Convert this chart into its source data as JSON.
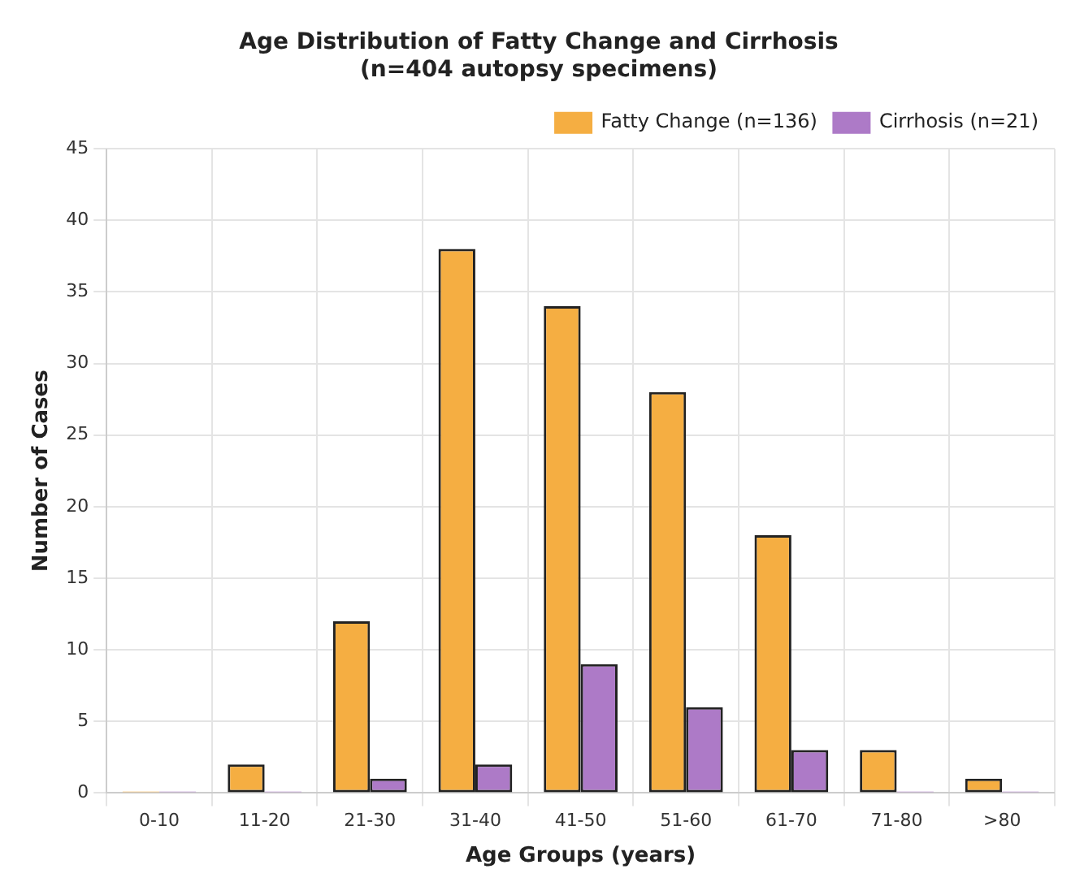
{
  "chart_data": {
    "type": "bar",
    "title": "Age Distribution of Fatty Change and Cirrhosis",
    "subtitle": "(n=404 autopsy specimens)",
    "xlabel": "Age Groups (years)",
    "ylabel": "Number of Cases",
    "categories": [
      "0-10",
      "11-20",
      "21-30",
      "31-40",
      "41-50",
      "51-60",
      "61-70",
      "71-80",
      ">80"
    ],
    "series": [
      {
        "name": "Fatty Change (n=136)",
        "color": "#f5ae42",
        "values": [
          0,
          2,
          12,
          38,
          34,
          28,
          18,
          3,
          1
        ]
      },
      {
        "name": "Cirrhosis (n=21)",
        "color": "#ad7ac7",
        "values": [
          0,
          0,
          1,
          2,
          9,
          6,
          3,
          0,
          0
        ]
      }
    ],
    "ylim": [
      0,
      45
    ],
    "yticks": [
      0,
      5,
      10,
      15,
      20,
      25,
      30,
      35,
      40,
      45
    ],
    "grid": true,
    "legend": "top right"
  }
}
